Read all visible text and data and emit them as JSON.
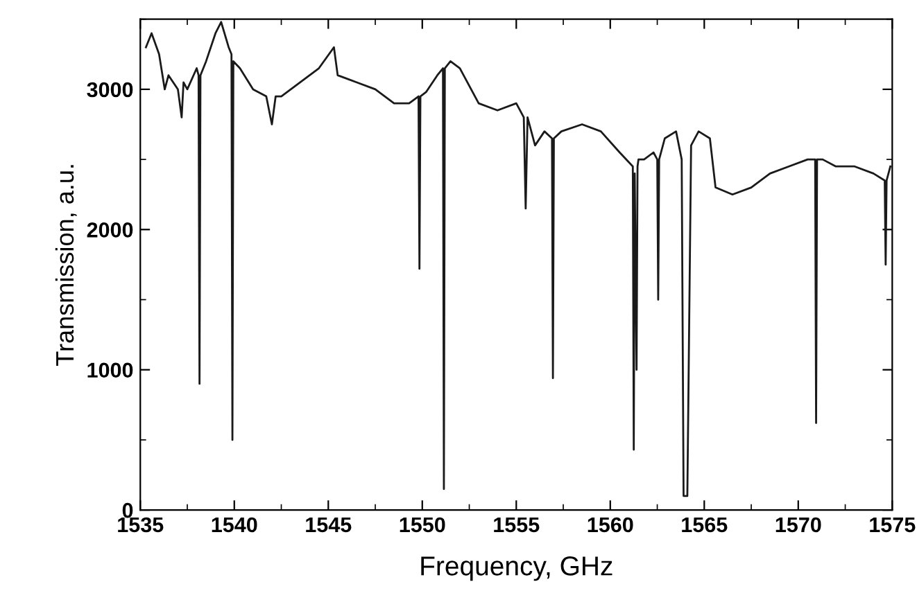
{
  "chart_data": {
    "type": "line",
    "xlabel": "Frequency, GHz",
    "ylabel": "Transmission, a.u.",
    "xlim": [
      1535,
      1575
    ],
    "ylim": [
      0,
      3500
    ],
    "xticks": [
      1535,
      1540,
      1545,
      1550,
      1555,
      1560,
      1565,
      1570,
      1575
    ],
    "yticks": [
      0,
      1000,
      2000,
      3000
    ],
    "line_style": "solid",
    "series": [
      {
        "color": "#1a1a1a",
        "x": [
          1535.3,
          1535.6,
          1536,
          1536.3,
          1536.5,
          1537,
          1537.2,
          1537.3,
          1537.5,
          1538,
          1538.1,
          1538.15,
          1538.2,
          1538.5,
          1539,
          1539.3,
          1539.7,
          1539.85,
          1539.9,
          1539.95,
          1540.3,
          1541,
          1541.7,
          1542,
          1542.2,
          1542.5,
          1543.5,
          1544.5,
          1545.3,
          1545.5,
          1546.5,
          1547.5,
          1548.5,
          1549.3,
          1549.8,
          1549.85,
          1549.9,
          1550.2,
          1550.8,
          1551.1,
          1551.15,
          1551.2,
          1551.5,
          1552,
          1553,
          1554,
          1555,
          1555.4,
          1555.5,
          1555.6,
          1556,
          1556.5,
          1556.9,
          1556.95,
          1557,
          1557.4,
          1558.5,
          1559.5,
          1560.5,
          1561.2,
          1561.25,
          1561.3,
          1561.4,
          1561.45,
          1561.5,
          1561.8,
          1562.3,
          1562.5,
          1562.55,
          1562.6,
          1562.9,
          1563.5,
          1563.8,
          1563.9,
          1564.1,
          1564.3,
          1564.7,
          1565.3,
          1565.6,
          1566.5,
          1567.5,
          1568.5,
          1569.5,
          1570.5,
          1570.9,
          1570.95,
          1571,
          1571.3,
          1572,
          1573,
          1574,
          1574.6,
          1574.65,
          1574.7,
          1574.9
        ],
        "values": [
          3300,
          3400,
          3250,
          3000,
          3100,
          3000,
          2800,
          3050,
          3000,
          3150,
          3100,
          900,
          3100,
          3200,
          3400,
          3480,
          3300,
          3250,
          500,
          3200,
          3150,
          3000,
          2950,
          2750,
          2950,
          2950,
          3050,
          3150,
          3300,
          3100,
          3050,
          3000,
          2900,
          2900,
          2950,
          1720,
          2950,
          2980,
          3100,
          3150,
          150,
          3150,
          3200,
          3150,
          2900,
          2850,
          2900,
          2800,
          2150,
          2800,
          2600,
          2700,
          2650,
          940,
          2650,
          2700,
          2750,
          2700,
          2550,
          2450,
          430,
          2400,
          1000,
          2450,
          2500,
          2500,
          2550,
          2500,
          1500,
          2500,
          2650,
          2700,
          2500,
          100,
          100,
          2600,
          2700,
          2650,
          2300,
          2250,
          2300,
          2400,
          2450,
          2500,
          2500,
          620,
          2500,
          2500,
          2450,
          2450,
          2400,
          2350,
          1750,
          2350,
          2450
        ]
      }
    ]
  }
}
